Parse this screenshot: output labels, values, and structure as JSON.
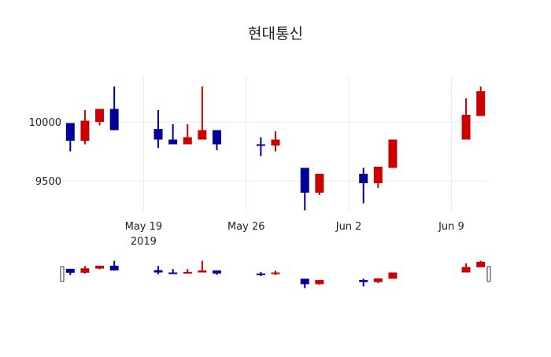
{
  "chart_data": {
    "type": "candlestick",
    "title": "현대통신",
    "xlabel": "",
    "ylabel": "",
    "ylim": [
      9225,
      10345
    ],
    "yticks": [
      9500,
      10000
    ],
    "xticks": [
      {
        "date": "2019-05-19",
        "label": "May 19",
        "sublabel": "2019"
      },
      {
        "date": "2019-05-26",
        "label": "May 26",
        "sublabel": ""
      },
      {
        "date": "2019-06-02",
        "label": "Jun 2",
        "sublabel": ""
      },
      {
        "date": "2019-06-09",
        "label": "Jun 9",
        "sublabel": ""
      }
    ],
    "xrange": [
      "2019-05-13 12:00",
      "2019-06-11 12:00"
    ],
    "grid": true,
    "increasing_color": "#cc0000",
    "decreasing_color": "#000099",
    "rangeslider": true,
    "data": [
      {
        "date": "2019-05-14",
        "open": 9990,
        "high": 9990,
        "low": 9750,
        "close": 9840
      },
      {
        "date": "2019-05-15",
        "open": 9840,
        "high": 10100,
        "low": 9810,
        "close": 10010
      },
      {
        "date": "2019-05-16",
        "open": 10000,
        "high": 10110,
        "low": 9970,
        "close": 10110
      },
      {
        "date": "2019-05-17",
        "open": 10110,
        "high": 10300,
        "low": 9930,
        "close": 9930
      },
      {
        "date": "2019-05-20",
        "open": 9940,
        "high": 10100,
        "low": 9780,
        "close": 9850
      },
      {
        "date": "2019-05-21",
        "open": 9850,
        "high": 9980,
        "low": 9810,
        "close": 9810
      },
      {
        "date": "2019-05-22",
        "open": 9810,
        "high": 9980,
        "low": 9810,
        "close": 9870
      },
      {
        "date": "2019-05-23",
        "open": 9850,
        "high": 10300,
        "low": 9850,
        "close": 9930
      },
      {
        "date": "2019-05-24",
        "open": 9930,
        "high": 9930,
        "low": 9760,
        "close": 9810
      },
      {
        "date": "2019-05-27",
        "open": 9810,
        "high": 9870,
        "low": 9710,
        "close": 9800
      },
      {
        "date": "2019-05-28",
        "open": 9800,
        "high": 9920,
        "low": 9750,
        "close": 9850
      },
      {
        "date": "2019-05-30",
        "open": 9610,
        "high": 9610,
        "low": 9250,
        "close": 9400
      },
      {
        "date": "2019-05-31",
        "open": 9400,
        "high": 9560,
        "low": 9380,
        "close": 9560
      },
      {
        "date": "2019-06-03",
        "open": 9560,
        "high": 9610,
        "low": 9310,
        "close": 9480
      },
      {
        "date": "2019-06-04",
        "open": 9480,
        "high": 9620,
        "low": 9440,
        "close": 9620
      },
      {
        "date": "2019-06-05",
        "open": 9610,
        "high": 9850,
        "low": 9610,
        "close": 9850
      },
      {
        "date": "2019-06-10",
        "open": 9850,
        "high": 10200,
        "low": 9850,
        "close": 10060
      },
      {
        "date": "2019-06-11",
        "open": 10050,
        "high": 10300,
        "low": 10050,
        "close": 10260
      }
    ]
  }
}
